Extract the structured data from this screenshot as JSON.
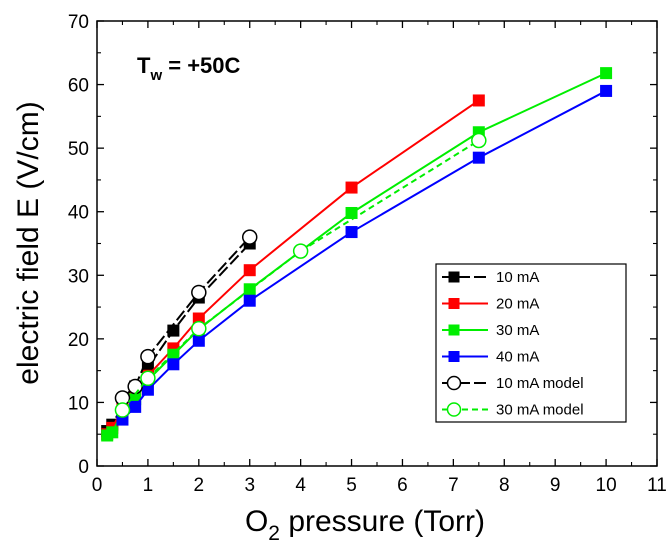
{
  "chart_data": {
    "type": "line",
    "xlabel_main": "O",
    "xlabel_sub": "2",
    "xlabel_rest": " pressure (Torr)",
    "ylabel": "electric field E (V/cm)",
    "annotation_main": "T",
    "annotation_sub": "w",
    "annotation_rest": " = +50C",
    "xlim": [
      0,
      11
    ],
    "ylim": [
      0,
      70
    ],
    "xticks": [
      "0",
      "1",
      "2",
      "3",
      "4",
      "5",
      "6",
      "7",
      "8",
      "9",
      "10",
      "11"
    ],
    "yticks": [
      "0",
      "10",
      "20",
      "30",
      "40",
      "50",
      "60",
      "70"
    ],
    "legend_position": "lower-right",
    "grid": false,
    "series": [
      {
        "name": "10 mA",
        "color": "#000000",
        "marker": "square-filled",
        "dash": "long-dash",
        "x": [
          0.2,
          0.3,
          0.5,
          0.75,
          1.0,
          1.5,
          2.0,
          3.0
        ],
        "y": [
          5.5,
          6.5,
          9.5,
          12.5,
          15.5,
          21.3,
          26.5,
          35.0
        ]
      },
      {
        "name": "20 mA",
        "color": "#ff0000",
        "marker": "square-filled",
        "dash": "solid",
        "x": [
          0.2,
          0.3,
          0.5,
          0.75,
          1.0,
          1.5,
          2.0,
          3.0,
          5.0,
          7.5
        ],
        "y": [
          5.0,
          6.0,
          9.0,
          11.5,
          14.2,
          18.5,
          23.2,
          30.8,
          43.8,
          57.5
        ]
      },
      {
        "name": "30 mA",
        "color": "#00ee00",
        "marker": "square-filled",
        "dash": "solid",
        "x": [
          0.2,
          0.3,
          0.5,
          0.75,
          1.0,
          1.5,
          2.0,
          3.0,
          5.0,
          7.5,
          10.0
        ],
        "y": [
          4.8,
          5.3,
          8.5,
          10.5,
          13.5,
          17.5,
          21.5,
          27.8,
          39.8,
          52.5,
          61.8
        ]
      },
      {
        "name": "40 mA",
        "color": "#0000ff",
        "marker": "square-filled",
        "dash": "solid",
        "x": [
          0.5,
          0.75,
          1.0,
          1.5,
          2.0,
          3.0,
          5.0,
          7.5,
          10.0
        ],
        "y": [
          7.3,
          9.3,
          12.0,
          16.0,
          19.7,
          26.0,
          36.8,
          48.5,
          59.0
        ]
      },
      {
        "name": "10 mA model",
        "color": "#000000",
        "marker": "circle-open",
        "dash": "long-dash",
        "x": [
          0.5,
          0.75,
          1.0,
          2.0,
          3.0
        ],
        "y": [
          10.7,
          12.5,
          17.2,
          27.3,
          36.0
        ]
      },
      {
        "name": "30 mA model",
        "color": "#00ee00",
        "marker": "circle-open",
        "dash": "dash",
        "x": [
          0.5,
          1.0,
          2.0,
          4.0,
          7.5
        ],
        "y": [
          8.8,
          13.8,
          21.6,
          33.8,
          51.2
        ]
      }
    ]
  }
}
